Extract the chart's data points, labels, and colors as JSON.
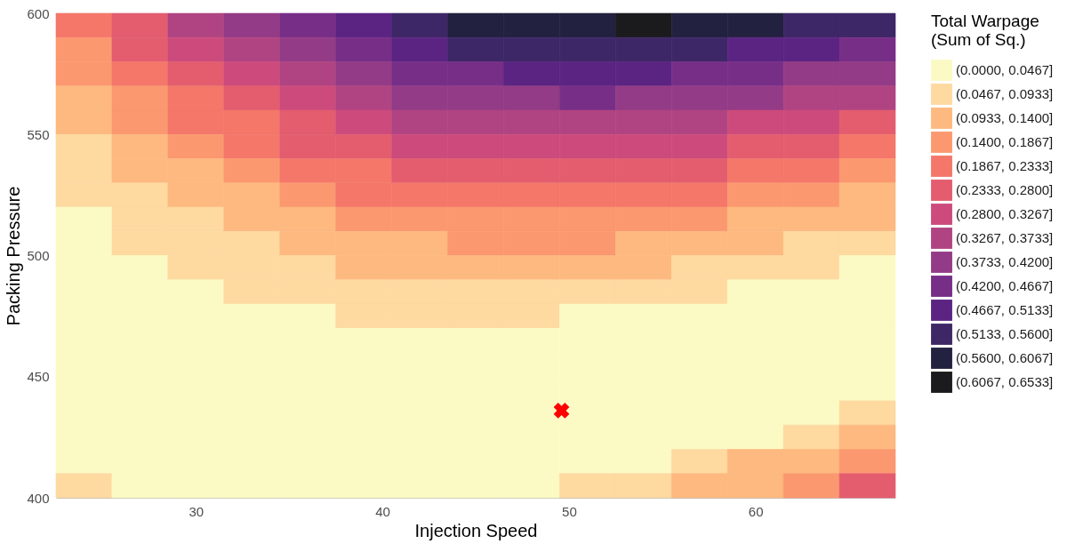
{
  "chart_data": {
    "type": "heatmap",
    "xlabel": "Injection Speed",
    "ylabel": "Packing Pressure",
    "clabel": "Total Warpage\n(Sum of Sq.)",
    "x": [
      24,
      27,
      30,
      33,
      36,
      39,
      42,
      45,
      48,
      51,
      54,
      57,
      60,
      63,
      66
    ],
    "y": [
      595,
      585,
      575,
      565,
      555,
      545,
      535,
      525,
      515,
      505,
      495,
      485,
      475,
      465,
      455,
      445,
      435,
      425,
      415,
      405
    ],
    "xlim": [
      22.5,
      67.5
    ],
    "xticks": [
      30,
      40,
      50,
      60
    ],
    "ylim": [
      400,
      600
    ],
    "yticks": [
      400,
      450,
      500,
      550,
      600
    ],
    "clim": [
      0.0,
      0.6533
    ],
    "cticks": [
      {
        "value": 0.0233,
        "label": "(0.0000, 0.0467]"
      },
      {
        "value": 0.07,
        "label": "(0.0467, 0.0933]"
      },
      {
        "value": 0.1167,
        "label": "(0.0933, 0.1400]"
      },
      {
        "value": 0.1633,
        "label": "(0.1400, 0.1867]"
      },
      {
        "value": 0.21,
        "label": "(0.1867, 0.2333]"
      },
      {
        "value": 0.2567,
        "label": "(0.2333, 0.2800]"
      },
      {
        "value": 0.3033,
        "label": "(0.2800, 0.3267]"
      },
      {
        "value": 0.35,
        "label": "(0.3267, 0.3733]"
      },
      {
        "value": 0.3967,
        "label": "(0.3733, 0.4200]"
      },
      {
        "value": 0.4433,
        "label": "(0.4200, 0.4667]"
      },
      {
        "value": 0.49,
        "label": "(0.4667, 0.5133]"
      },
      {
        "value": 0.5367,
        "label": "(0.5133, 0.5600]"
      },
      {
        "value": 0.5833,
        "label": "(0.5600, 0.6067]"
      },
      {
        "value": 0.63,
        "label": "(0.6067, 0.6533]"
      }
    ],
    "colors": [
      "#fcfac4",
      "#fed9a0",
      "#fdb97f",
      "#fb9870",
      "#f4776a",
      "#e35d6f",
      "#cc4b7c",
      "#b04482",
      "#933b86",
      "#772e87",
      "#5b2482",
      "#3d2766",
      "#232140",
      "#1b1b1e"
    ],
    "cells": [
      [
        0.21,
        0.257,
        0.35,
        0.397,
        0.443,
        0.49,
        0.537,
        0.583,
        0.583,
        0.583,
        0.63,
        0.583,
        0.583,
        0.537,
        0.537
      ],
      [
        0.163,
        0.257,
        0.303,
        0.35,
        0.397,
        0.443,
        0.49,
        0.537,
        0.537,
        0.537,
        0.537,
        0.537,
        0.49,
        0.49,
        0.443
      ],
      [
        0.163,
        0.21,
        0.257,
        0.303,
        0.35,
        0.397,
        0.443,
        0.443,
        0.49,
        0.49,
        0.49,
        0.443,
        0.443,
        0.397,
        0.397
      ],
      [
        0.117,
        0.163,
        0.21,
        0.257,
        0.303,
        0.35,
        0.397,
        0.397,
        0.397,
        0.443,
        0.397,
        0.397,
        0.397,
        0.35,
        0.35
      ],
      [
        0.117,
        0.163,
        0.21,
        0.21,
        0.257,
        0.303,
        0.35,
        0.35,
        0.35,
        0.35,
        0.35,
        0.35,
        0.303,
        0.303,
        0.257
      ],
      [
        0.07,
        0.117,
        0.163,
        0.21,
        0.257,
        0.257,
        0.303,
        0.303,
        0.303,
        0.303,
        0.303,
        0.303,
        0.257,
        0.257,
        0.21
      ],
      [
        0.07,
        0.117,
        0.117,
        0.163,
        0.21,
        0.21,
        0.257,
        0.257,
        0.257,
        0.257,
        0.257,
        0.257,
        0.21,
        0.21,
        0.163
      ],
      [
        0.07,
        0.07,
        0.117,
        0.117,
        0.163,
        0.21,
        0.21,
        0.21,
        0.21,
        0.21,
        0.21,
        0.21,
        0.163,
        0.163,
        0.117
      ],
      [
        0.023,
        0.07,
        0.07,
        0.117,
        0.117,
        0.163,
        0.163,
        0.163,
        0.163,
        0.163,
        0.163,
        0.163,
        0.117,
        0.117,
        0.117
      ],
      [
        0.023,
        0.07,
        0.07,
        0.07,
        0.117,
        0.117,
        0.117,
        0.163,
        0.163,
        0.163,
        0.117,
        0.117,
        0.117,
        0.07,
        0.07
      ],
      [
        0.023,
        0.023,
        0.07,
        0.07,
        0.07,
        0.117,
        0.117,
        0.117,
        0.117,
        0.117,
        0.117,
        0.07,
        0.07,
        0.07,
        0.023
      ],
      [
        0.023,
        0.023,
        0.023,
        0.07,
        0.07,
        0.07,
        0.07,
        0.07,
        0.07,
        0.07,
        0.07,
        0.07,
        0.023,
        0.023,
        0.023
      ],
      [
        0.023,
        0.023,
        0.023,
        0.023,
        0.023,
        0.07,
        0.07,
        0.07,
        0.07,
        0.023,
        0.023,
        0.023,
        0.023,
        0.023,
        0.023
      ],
      [
        0.023,
        0.023,
        0.023,
        0.023,
        0.023,
        0.023,
        0.023,
        0.023,
        0.023,
        0.023,
        0.023,
        0.023,
        0.023,
        0.023,
        0.023
      ],
      [
        0.023,
        0.023,
        0.023,
        0.023,
        0.023,
        0.023,
        0.023,
        0.023,
        0.023,
        0.023,
        0.023,
        0.023,
        0.023,
        0.023,
        0.023
      ],
      [
        0.023,
        0.023,
        0.023,
        0.023,
        0.023,
        0.023,
        0.023,
        0.023,
        0.023,
        0.023,
        0.023,
        0.023,
        0.023,
        0.023,
        0.023
      ],
      [
        0.023,
        0.023,
        0.023,
        0.023,
        0.023,
        0.023,
        0.023,
        0.023,
        0.023,
        0.023,
        0.023,
        0.023,
        0.023,
        0.023,
        0.07
      ],
      [
        0.023,
        0.023,
        0.023,
        0.023,
        0.023,
        0.023,
        0.023,
        0.023,
        0.023,
        0.023,
        0.023,
        0.023,
        0.023,
        0.07,
        0.117
      ],
      [
        0.023,
        0.023,
        0.023,
        0.023,
        0.023,
        0.023,
        0.023,
        0.023,
        0.023,
        0.023,
        0.023,
        0.07,
        0.117,
        0.117,
        0.163
      ],
      [
        0.07,
        0.023,
        0.023,
        0.023,
        0.023,
        0.023,
        0.023,
        0.023,
        0.023,
        0.07,
        0.07,
        0.117,
        0.117,
        0.163,
        0.257
      ]
    ],
    "series": [
      {
        "type": "scatter",
        "x": [
          49.6
        ],
        "values": [
          436
        ],
        "color": "#ff0000"
      }
    ],
    "marker": "cross"
  }
}
